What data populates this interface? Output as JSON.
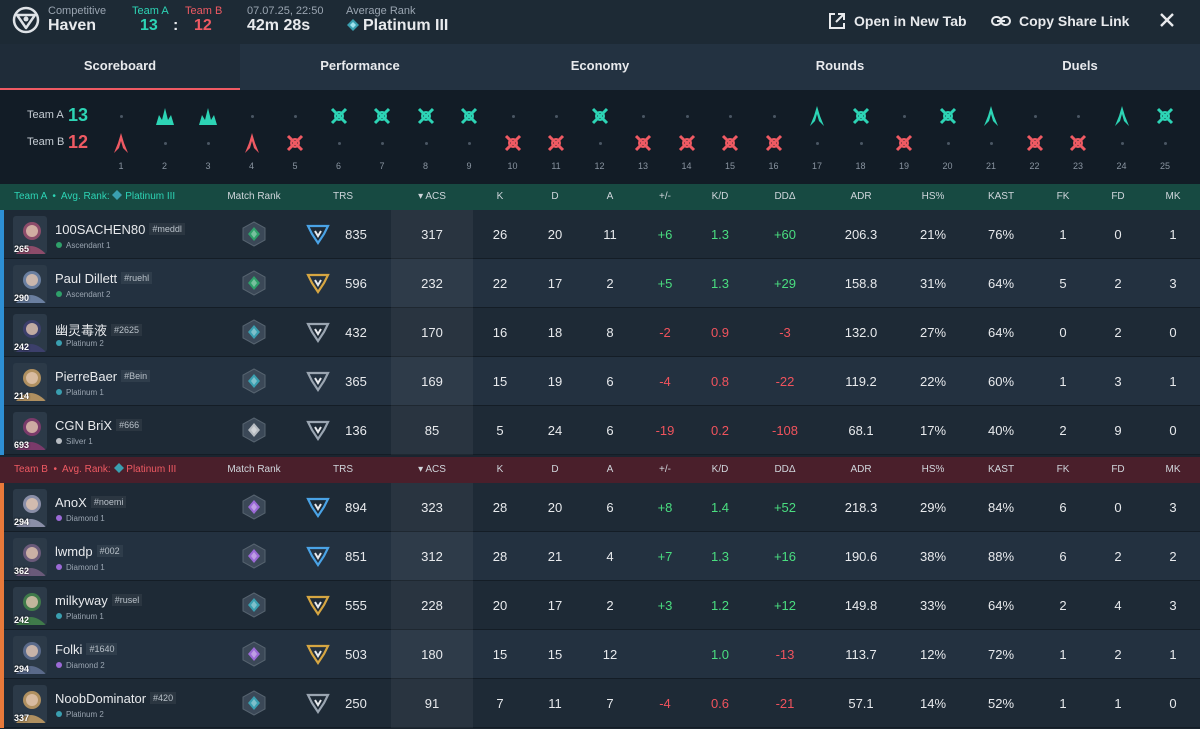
{
  "header": {
    "mode_label": "Competitive",
    "map": "Haven",
    "team_a_label": "Team A",
    "team_b_label": "Team B",
    "team_a_score": "13",
    "separator": ":",
    "team_b_score": "12",
    "date": "07.07.25, 22:50",
    "duration": "42m 28s",
    "avg_rank_label": "Average Rank",
    "avg_rank": "Platinum III",
    "open_new_tab": "Open in New Tab",
    "copy_share_link": "Copy Share Link"
  },
  "tabs": [
    {
      "label": "Scoreboard",
      "active": true
    },
    {
      "label": "Performance",
      "active": false
    },
    {
      "label": "Economy",
      "active": false
    },
    {
      "label": "Rounds",
      "active": false
    },
    {
      "label": "Duels",
      "active": false
    }
  ],
  "timeline": {
    "team_a_label": "Team A",
    "team_a_score": "13",
    "team_b_label": "Team B",
    "team_b_score": "12",
    "rounds": [
      {
        "n": "1",
        "winner": "B",
        "type": "spike"
      },
      {
        "n": "2",
        "winner": "A",
        "type": "elim"
      },
      {
        "n": "3",
        "winner": "A",
        "type": "elim"
      },
      {
        "n": "4",
        "winner": "B",
        "type": "spike"
      },
      {
        "n": "5",
        "winner": "B",
        "type": "defuse"
      },
      {
        "n": "6",
        "winner": "A",
        "type": "defuse"
      },
      {
        "n": "7",
        "winner": "A",
        "type": "defuse"
      },
      {
        "n": "8",
        "winner": "A",
        "type": "defuse"
      },
      {
        "n": "9",
        "winner": "A",
        "type": "defuse"
      },
      {
        "n": "10",
        "winner": "B",
        "type": "defuse"
      },
      {
        "n": "11",
        "winner": "B",
        "type": "defuse"
      },
      {
        "n": "12",
        "winner": "A",
        "type": "defuse"
      },
      {
        "n": "13",
        "winner": "B",
        "type": "defuse"
      },
      {
        "n": "14",
        "winner": "B",
        "type": "defuse"
      },
      {
        "n": "15",
        "winner": "B",
        "type": "defuse"
      },
      {
        "n": "16",
        "winner": "B",
        "type": "defuse"
      },
      {
        "n": "17",
        "winner": "A",
        "type": "spike"
      },
      {
        "n": "18",
        "winner": "A",
        "type": "defuse"
      },
      {
        "n": "19",
        "winner": "B",
        "type": "defuse"
      },
      {
        "n": "20",
        "winner": "A",
        "type": "defuse"
      },
      {
        "n": "21",
        "winner": "A",
        "type": "spike"
      },
      {
        "n": "22",
        "winner": "B",
        "type": "defuse"
      },
      {
        "n": "23",
        "winner": "B",
        "type": "defuse"
      },
      {
        "n": "24",
        "winner": "A",
        "type": "spike"
      },
      {
        "n": "25",
        "winner": "A",
        "type": "defuse"
      }
    ]
  },
  "columns": [
    "Match Rank",
    "TRS",
    "ACS",
    "K",
    "D",
    "A",
    "+/-",
    "K/D",
    "DDΔ",
    "ADR",
    "HS%",
    "KAST",
    "FK",
    "FD",
    "MK"
  ],
  "team_a": {
    "label": "Team A",
    "avg_rank_label": "Avg. Rank:",
    "avg_rank": "Platinum III",
    "players": [
      {
        "name": "100SACHEN80",
        "tag": "#meddl",
        "rank": "Ascendant 1",
        "level": "265",
        "trs": "835",
        "acs": "317",
        "k": "26",
        "d": "20",
        "a": "11",
        "pm": "+6",
        "kd": "1.3",
        "dd": "+60",
        "adr": "206.3",
        "hs": "21%",
        "kast": "76%",
        "fk": "1",
        "fd": "0",
        "mk": "1",
        "mr_color": "#2fa06a",
        "tier": "blue",
        "agent": "#8d4c6a"
      },
      {
        "name": "Paul Dillett",
        "tag": "#ruehl",
        "rank": "Ascendant 2",
        "level": "290",
        "trs": "596",
        "acs": "232",
        "k": "22",
        "d": "17",
        "a": "2",
        "pm": "+5",
        "kd": "1.3",
        "dd": "+29",
        "adr": "158.8",
        "hs": "31%",
        "kast": "64%",
        "fk": "5",
        "fd": "2",
        "mk": "3",
        "mr_color": "#2fa06a",
        "tier": "gold",
        "agent": "#6a7fa0"
      },
      {
        "name": "幽灵毒液",
        "tag": "#2625",
        "rank": "Platinum 2",
        "level": "242",
        "trs": "432",
        "acs": "170",
        "k": "16",
        "d": "18",
        "a": "8",
        "pm": "-2",
        "kd": "0.9",
        "dd": "-3",
        "adr": "132.0",
        "hs": "27%",
        "kast": "64%",
        "fk": "0",
        "fd": "2",
        "mk": "0",
        "mr_color": "#3a9fb0",
        "tier": "grey",
        "agent": "#3c3f6b"
      },
      {
        "name": "PierreBaer",
        "tag": "#Bein",
        "rank": "Platinum 1",
        "level": "214",
        "trs": "365",
        "acs": "169",
        "k": "15",
        "d": "19",
        "a": "6",
        "pm": "-4",
        "kd": "0.8",
        "dd": "-22",
        "adr": "119.2",
        "hs": "22%",
        "kast": "60%",
        "fk": "1",
        "fd": "3",
        "mk": "1",
        "mr_color": "#3a9fb0",
        "tier": "grey",
        "agent": "#b09060"
      },
      {
        "name": "CGN BriX",
        "tag": "#666",
        "rank": "Silver 1",
        "level": "693",
        "trs": "136",
        "acs": "85",
        "k": "5",
        "d": "24",
        "a": "6",
        "pm": "-19",
        "kd": "0.2",
        "dd": "-108",
        "adr": "68.1",
        "hs": "17%",
        "kast": "40%",
        "fk": "2",
        "fd": "9",
        "mk": "0",
        "mr_color": "#b7bcc2",
        "tier": "grey",
        "agent": "#7a3a6a"
      }
    ]
  },
  "team_b": {
    "label": "Team B",
    "avg_rank_label": "Avg. Rank:",
    "avg_rank": "Platinum III",
    "players": [
      {
        "name": "AnoX",
        "tag": "#noemi",
        "rank": "Diamond 1",
        "level": "294",
        "trs": "894",
        "acs": "323",
        "k": "28",
        "d": "20",
        "a": "6",
        "pm": "+8",
        "kd": "1.4",
        "dd": "+52",
        "adr": "218.3",
        "hs": "29%",
        "kast": "84%",
        "fk": "6",
        "fd": "0",
        "mk": "3",
        "mr_color": "#9b6ad6",
        "tier": "blue",
        "agent": "#8a8fa8"
      },
      {
        "name": "lwmdp",
        "tag": "#002",
        "rank": "Diamond 1",
        "level": "362",
        "trs": "851",
        "acs": "312",
        "k": "28",
        "d": "21",
        "a": "4",
        "pm": "+7",
        "kd": "1.3",
        "dd": "+16",
        "adr": "190.6",
        "hs": "38%",
        "kast": "88%",
        "fk": "6",
        "fd": "2",
        "mk": "2",
        "mr_color": "#9b6ad6",
        "tier": "blue",
        "agent": "#6a5a7a"
      },
      {
        "name": "milkyway",
        "tag": "#rusel",
        "rank": "Platinum 1",
        "level": "242",
        "trs": "555",
        "acs": "228",
        "k": "20",
        "d": "17",
        "a": "2",
        "pm": "+3",
        "kd": "1.2",
        "dd": "+12",
        "adr": "149.8",
        "hs": "33%",
        "kast": "64%",
        "fk": "2",
        "fd": "4",
        "mk": "3",
        "mr_color": "#3a9fb0",
        "tier": "gold",
        "agent": "#3f7a4a"
      },
      {
        "name": "Folki",
        "tag": "#1640",
        "rank": "Diamond 2",
        "level": "294",
        "trs": "503",
        "acs": "180",
        "k": "15",
        "d": "15",
        "a": "12",
        "pm": "",
        "kd": "1.0",
        "dd": "-13",
        "adr": "113.7",
        "hs": "12%",
        "kast": "72%",
        "fk": "1",
        "fd": "2",
        "mk": "1",
        "mr_color": "#9b6ad6",
        "tier": "gold",
        "agent": "#5a6a8a"
      },
      {
        "name": "NoobDominator",
        "tag": "#420",
        "rank": "Platinum 2",
        "level": "337",
        "trs": "250",
        "acs": "91",
        "k": "7",
        "d": "11",
        "a": "7",
        "pm": "-4",
        "kd": "0.6",
        "dd": "-21",
        "adr": "57.1",
        "hs": "14%",
        "kast": "52%",
        "fk": "1",
        "fd": "1",
        "mk": "0",
        "mr_color": "#3a9fb0",
        "tier": "grey",
        "agent": "#b09060"
      }
    ]
  },
  "colors": {
    "team_a": "#2dd4b5",
    "team_b": "#ef5a63",
    "positive": "#4ade80",
    "negative": "#f0535d"
  }
}
